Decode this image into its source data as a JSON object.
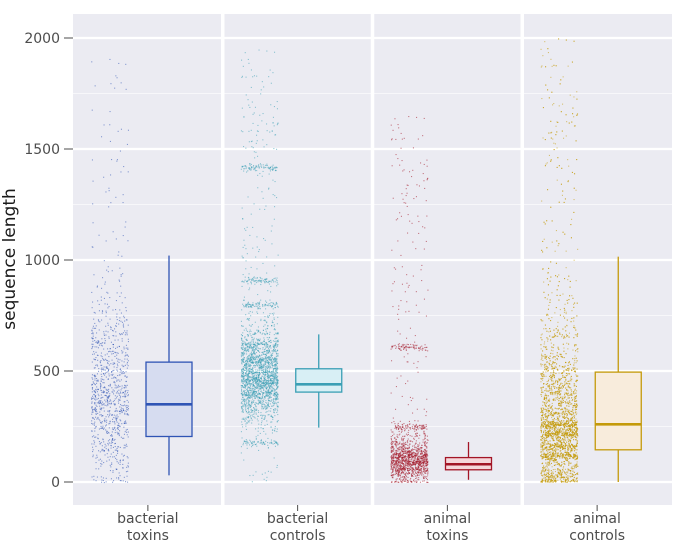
{
  "chart_data": {
    "type": "boxplot",
    "title": "",
    "xlabel": "",
    "ylabel": "sequence length",
    "ylim": [
      -100,
      2100
    ],
    "yticks": [
      0,
      500,
      1000,
      1500,
      2000
    ],
    "grid": true,
    "panels": [
      {
        "line1": "bacterial",
        "line2": "toxins",
        "color": "#2f54b5",
        "fill": "#d6dcf0",
        "box": {
          "min": 30,
          "q1": 205,
          "median": 350,
          "q3": 540,
          "max": 1020
        },
        "points": {
          "count": 1000,
          "max": 1950,
          "mode": 300,
          "spread": 250
        }
      },
      {
        "line1": "bacterial",
        "line2": "controls",
        "color": "#3a9fb5",
        "fill": "#d8eff5",
        "box": {
          "min": 245,
          "q1": 405,
          "median": 440,
          "q3": 510,
          "max": 665
        },
        "points": {
          "count": 2600,
          "max": 1950,
          "mode": 430,
          "spread": 130,
          "bands": [
            180,
            400,
            460,
            550,
            620,
            800,
            910,
            1420
          ]
        }
      },
      {
        "line1": "animal",
        "line2": "toxins",
        "color": "#a31526",
        "fill": "#f6d7db",
        "box": {
          "min": 10,
          "q1": 55,
          "median": 80,
          "q3": 110,
          "max": 180
        },
        "points": {
          "count": 1500,
          "max": 1650,
          "mode": 80,
          "spread": 70,
          "bands": [
            60,
            90,
            120,
            250,
            610
          ]
        }
      },
      {
        "line1": "animal",
        "line2": "controls",
        "color": "#c49a0a",
        "fill": "#f8ecdc",
        "box": {
          "min": 0,
          "q1": 145,
          "median": 260,
          "q3": 495,
          "max": 1015
        },
        "points": {
          "count": 3600,
          "max": 2000,
          "mode": 180,
          "spread": 260,
          "bands": [
            120,
            160,
            220,
            260
          ]
        }
      }
    ]
  }
}
